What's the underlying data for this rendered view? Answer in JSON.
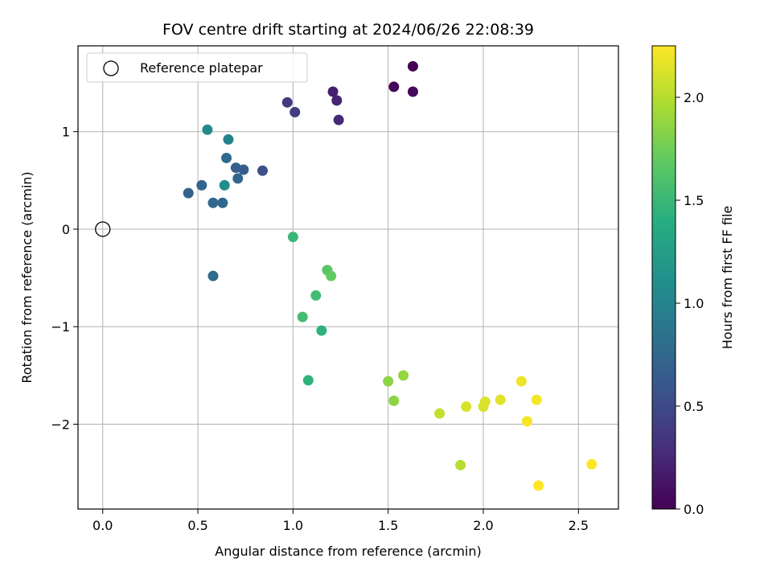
{
  "chart_data": {
    "type": "scatter",
    "title": "FOV centre drift starting at 2024/06/26 22:08:39",
    "xlabel": "Angular distance from reference (arcmin)",
    "ylabel": "Rotation from reference (arcmin)",
    "xlim": [
      -0.13,
      2.71
    ],
    "ylim": [
      -2.87,
      1.88
    ],
    "x_ticks": [
      0.0,
      0.5,
      1.0,
      1.5,
      2.0,
      2.5
    ],
    "x_tick_labels": [
      "0.0",
      "0.5",
      "1.0",
      "1.5",
      "2.0",
      "2.5"
    ],
    "y_ticks": [
      -2,
      -1,
      0,
      1
    ],
    "y_tick_labels": [
      "−2",
      "−1",
      "0",
      "1"
    ],
    "grid": true,
    "legend": {
      "position": "top-left",
      "entries": [
        "Reference platepar"
      ]
    },
    "reference_point": {
      "x": 0.0,
      "y": 0.0,
      "marker": "open-circle"
    },
    "colorbar": {
      "label": "Hours from first FF file",
      "min": 0.0,
      "max": 2.25,
      "ticks": [
        0.0,
        0.5,
        1.0,
        1.5,
        2.0
      ],
      "tick_labels": [
        "0.0",
        "0.5",
        "1.0",
        "1.5",
        "2.0"
      ],
      "colormap": "viridis"
    },
    "points": [
      {
        "x": 1.63,
        "y": 1.67,
        "c": 0.0
      },
      {
        "x": 1.53,
        "y": 1.46,
        "c": 0.03
      },
      {
        "x": 1.63,
        "y": 1.41,
        "c": 0.05
      },
      {
        "x": 1.21,
        "y": 1.41,
        "c": 0.2
      },
      {
        "x": 1.23,
        "y": 1.32,
        "c": 0.22
      },
      {
        "x": 1.24,
        "y": 1.12,
        "c": 0.25
      },
      {
        "x": 0.97,
        "y": 1.3,
        "c": 0.38
      },
      {
        "x": 1.01,
        "y": 1.2,
        "c": 0.4
      },
      {
        "x": 0.84,
        "y": 0.6,
        "c": 0.55
      },
      {
        "x": 0.74,
        "y": 0.61,
        "c": 0.65
      },
      {
        "x": 0.7,
        "y": 0.63,
        "c": 0.68
      },
      {
        "x": 0.71,
        "y": 0.52,
        "c": 0.72
      },
      {
        "x": 0.45,
        "y": 0.37,
        "c": 0.7
      },
      {
        "x": 0.52,
        "y": 0.45,
        "c": 0.72
      },
      {
        "x": 0.58,
        "y": 0.27,
        "c": 0.75
      },
      {
        "x": 0.63,
        "y": 0.27,
        "c": 0.75
      },
      {
        "x": 0.65,
        "y": 0.73,
        "c": 0.78
      },
      {
        "x": 0.58,
        "y": -0.48,
        "c": 0.78
      },
      {
        "x": 0.66,
        "y": 0.92,
        "c": 1.0
      },
      {
        "x": 0.55,
        "y": 1.02,
        "c": 1.05
      },
      {
        "x": 0.64,
        "y": 0.45,
        "c": 1.1
      },
      {
        "x": 1.0,
        "y": -0.08,
        "c": 1.5
      },
      {
        "x": 1.12,
        "y": -0.68,
        "c": 1.55
      },
      {
        "x": 1.05,
        "y": -0.9,
        "c": 1.55
      },
      {
        "x": 1.15,
        "y": -1.04,
        "c": 1.45
      },
      {
        "x": 1.08,
        "y": -1.55,
        "c": 1.45
      },
      {
        "x": 1.18,
        "y": -0.42,
        "c": 1.65
      },
      {
        "x": 1.2,
        "y": -0.48,
        "c": 1.7
      },
      {
        "x": 1.5,
        "y": -1.56,
        "c": 1.85
      },
      {
        "x": 1.58,
        "y": -1.5,
        "c": 1.88
      },
      {
        "x": 1.53,
        "y": -1.76,
        "c": 1.85
      },
      {
        "x": 1.77,
        "y": -1.89,
        "c": 2.05
      },
      {
        "x": 1.88,
        "y": -2.42,
        "c": 2.0
      },
      {
        "x": 1.91,
        "y": -1.82,
        "c": 2.12
      },
      {
        "x": 2.0,
        "y": -1.82,
        "c": 2.12
      },
      {
        "x": 2.01,
        "y": -1.77,
        "c": 2.13
      },
      {
        "x": 2.09,
        "y": -1.75,
        "c": 2.15
      },
      {
        "x": 2.2,
        "y": -1.56,
        "c": 2.2
      },
      {
        "x": 2.23,
        "y": -1.97,
        "c": 2.22
      },
      {
        "x": 2.28,
        "y": -1.75,
        "c": 2.22
      },
      {
        "x": 2.29,
        "y": -2.63,
        "c": 2.25
      },
      {
        "x": 2.57,
        "y": -2.41,
        "c": 2.25
      }
    ]
  }
}
